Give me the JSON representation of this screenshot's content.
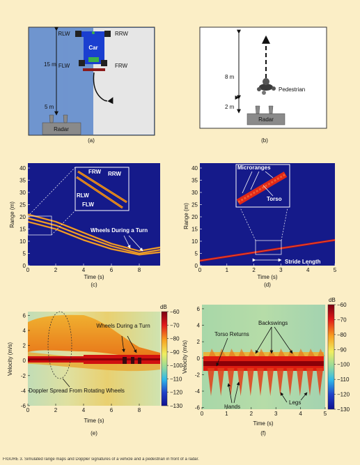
{
  "panel_a": {
    "caption": "(a)",
    "labels": {
      "rlw": "RLW",
      "rrw": "RRW",
      "flw": "FLW",
      "frw": "FRW",
      "car": "Car",
      "radar": "Radar"
    },
    "dist_top": "15 m",
    "dist_bottom": "5 m",
    "colors": {
      "road": "#6f95cf",
      "ground": "#e6e6e6",
      "car": "#1a3fd0",
      "wheel": "#222222",
      "bumper": "#8b1a1a"
    }
  },
  "panel_b": {
    "caption": "(b)",
    "labels": {
      "pedestrian": "Pedestrian",
      "radar": "Radar"
    },
    "dist_top": "8 m",
    "dist_bottom": "2 m"
  },
  "panel_c": {
    "caption": "(c)",
    "xlabel": "Time (s)",
    "ylabel": "Range (m)",
    "annotation": "Wheels During a Turn",
    "inset_labels": {
      "frw": "FRW",
      "rrw": "RRW",
      "rlw": "RLW",
      "flw": "FLW"
    },
    "chart_data": {
      "type": "heatmap",
      "xlim": [
        0,
        9.5
      ],
      "ylim": [
        0,
        42
      ],
      "xticks": [
        0,
        2,
        4,
        6,
        8
      ],
      "yticks": [
        0,
        5,
        10,
        15,
        20,
        25,
        30,
        35,
        40
      ],
      "tracks": [
        {
          "x": [
            0,
            2,
            4,
            6,
            8,
            9.5
          ],
          "y": [
            21,
            18,
            13.5,
            9,
            6,
            7.5
          ]
        },
        {
          "x": [
            0,
            2,
            4,
            6,
            8,
            9.5
          ],
          "y": [
            19.5,
            16.5,
            12,
            8,
            5,
            6.5
          ]
        },
        {
          "x": [
            0,
            2,
            4,
            6,
            8,
            9.5
          ],
          "y": [
            18,
            15,
            10.5,
            6.8,
            4.5,
            5.5
          ]
        }
      ]
    }
  },
  "panel_d": {
    "caption": "(d)",
    "xlabel": "Time (s)",
    "ylabel": "Range (m)",
    "annotation": "Stride Length",
    "inset_labels": {
      "microranges": "Microranges",
      "torso": "Torso"
    },
    "chart_data": {
      "type": "heatmap",
      "xlim": [
        0,
        5
      ],
      "ylim": [
        0,
        42
      ],
      "xticks": [
        0,
        1,
        2,
        3,
        4,
        5
      ],
      "yticks": [
        0,
        5,
        10,
        15,
        20,
        25,
        30,
        35,
        40
      ],
      "tracks": [
        {
          "x": [
            0,
            5
          ],
          "y": [
            2,
            10.5
          ]
        }
      ]
    }
  },
  "panel_e": {
    "caption": "(e)",
    "xlabel": "Time (s)",
    "ylabel": "Velocity (m/s)",
    "colorbar_unit": "dB",
    "annotation_turn": "Wheels During a Turn",
    "annotation_doppler": "Doppler Spread From Rotating Wheels",
    "chart_data": {
      "type": "heatmap",
      "xlim": [
        0,
        9.5
      ],
      "ylim": [
        -6,
        6.5
      ],
      "xticks": [
        0,
        2,
        4,
        6,
        8
      ],
      "yticks": [
        -6,
        -4,
        -2,
        0,
        2,
        4,
        6
      ],
      "colorbar": {
        "range": [
          -130,
          -60
        ],
        "ticks": [
          -60,
          -70,
          -80,
          -90,
          -100,
          -110,
          -120,
          -130
        ]
      }
    }
  },
  "panel_f": {
    "caption": "(f)",
    "xlabel": "Time (s)",
    "ylabel": "Velocity (m/s)",
    "colorbar_unit": "dB",
    "annotation_torso": "Torso Returns",
    "annotation_backswings": "Backswings",
    "annotation_hands": "Hands",
    "annotation_legs": "Legs",
    "chart_data": {
      "type": "heatmap",
      "xlim": [
        0,
        5
      ],
      "ylim": [
        -6.2,
        6.5
      ],
      "xticks": [
        0,
        1,
        2,
        3,
        4,
        5
      ],
      "yticks": [
        -6,
        -4,
        -2,
        0,
        2,
        4,
        6
      ],
      "colorbar": {
        "range": [
          -130,
          -60
        ],
        "ticks": [
          -60,
          -70,
          -80,
          -90,
          -100,
          -110,
          -120,
          -130
        ]
      }
    }
  },
  "caption_text": "FIGURE 3. Simulated range maps and Doppler signatures of a vehicle and a pedestrian in front of a radar."
}
